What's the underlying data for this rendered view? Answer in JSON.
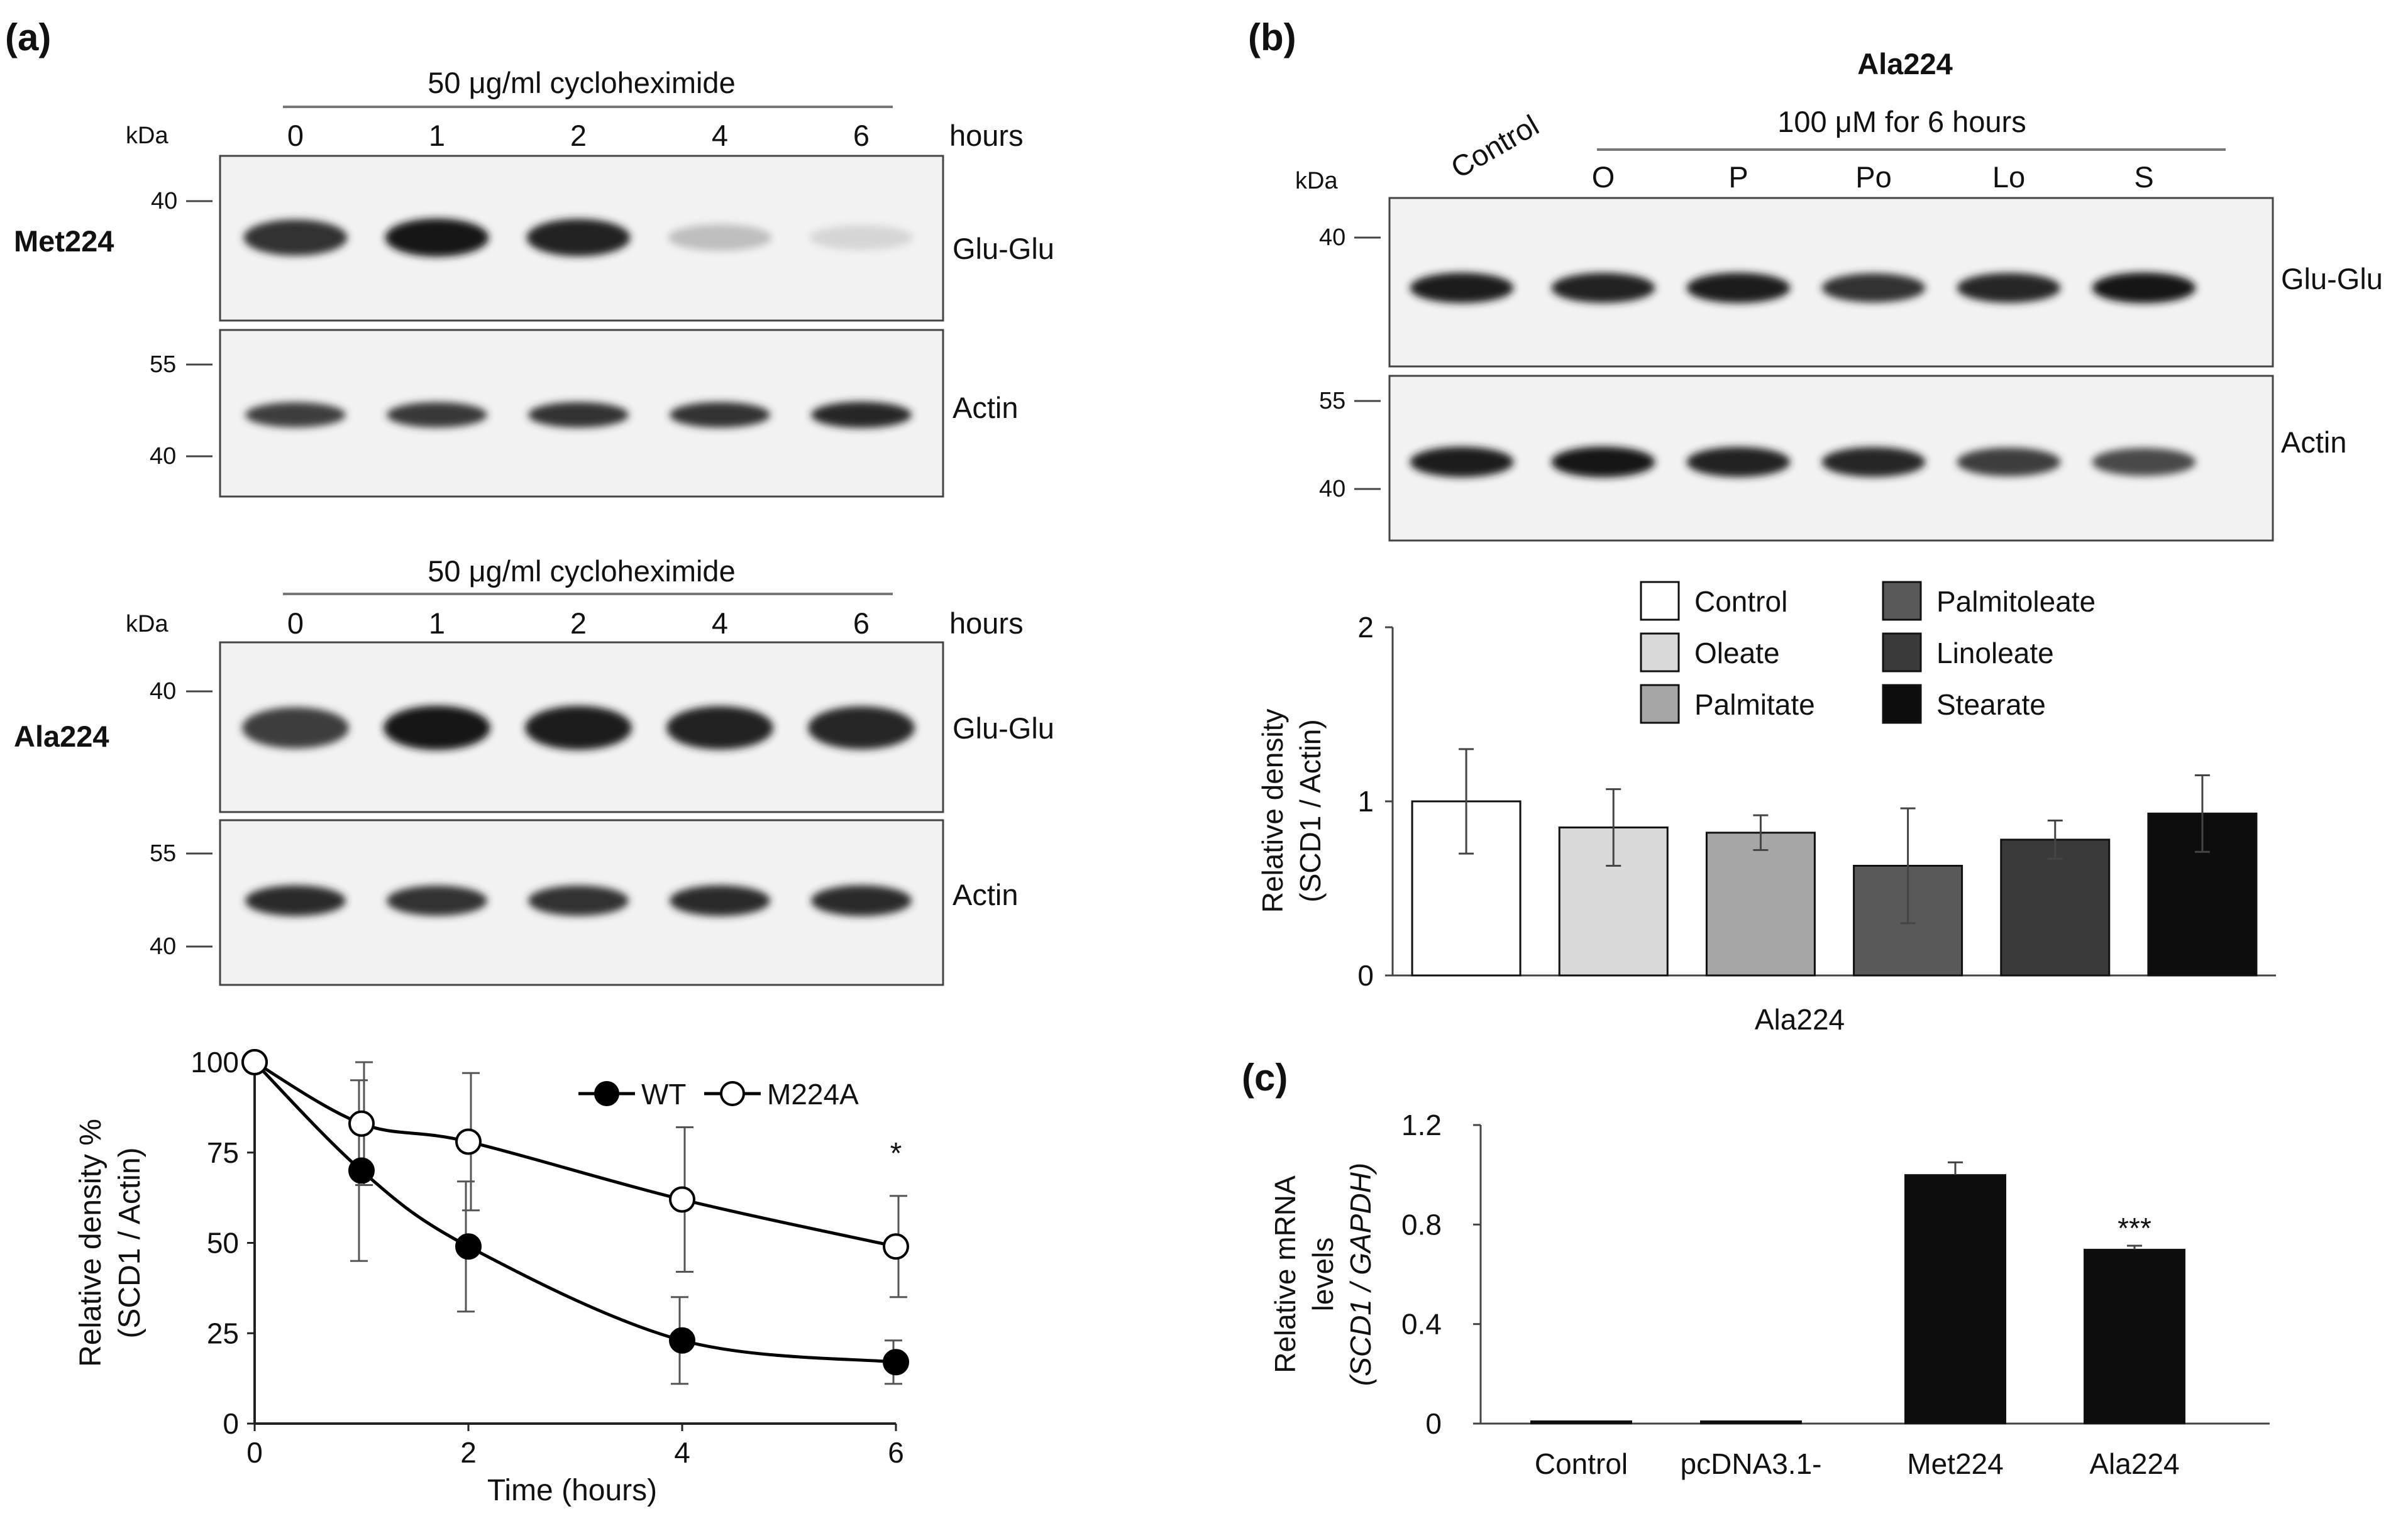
{
  "panel_a": {
    "label": "(a)",
    "kda": "kDa",
    "treatment": "50 μg/ml cycloheximide",
    "hours_label": "hours",
    "timepoints": [
      "0",
      "1",
      "2",
      "4",
      "6"
    ],
    "blot1": {
      "row_label": "Met224",
      "top_band_label": "Glu-Glu",
      "bottom_band_label": "Actin",
      "marker_top": [
        "40"
      ],
      "marker_bottom": [
        "55",
        "40"
      ],
      "band_intensity_glu": [
        0.82,
        0.95,
        0.9,
        0.2,
        0.1
      ],
      "band_intensity_actin": [
        0.78,
        0.8,
        0.82,
        0.82,
        0.88
      ]
    },
    "blot2": {
      "row_label": "Ala224",
      "top_band_label": "Glu-Glu",
      "bottom_band_label": "Actin",
      "marker_top": [
        "40"
      ],
      "marker_bottom": [
        "55",
        "40"
      ],
      "band_intensity_glu": [
        0.78,
        0.95,
        0.93,
        0.9,
        0.88
      ],
      "band_intensity_actin": [
        0.85,
        0.82,
        0.83,
        0.85,
        0.86
      ]
    }
  },
  "panel_b": {
    "label": "(b)",
    "title": "Ala224",
    "treatment": "100 μM for 6 hours",
    "kda": "kDa",
    "lanes": [
      "Control",
      "O",
      "P",
      "Po",
      "Lo",
      "S"
    ],
    "top_band_label": "Glu-Glu",
    "bottom_band_label": "Actin",
    "marker_top": [
      "40"
    ],
    "marker_bottom": [
      "55",
      "40"
    ],
    "band_intensity_glu": [
      0.92,
      0.9,
      0.92,
      0.82,
      0.88,
      0.95
    ],
    "band_intensity_actin": [
      0.92,
      0.95,
      0.9,
      0.88,
      0.78,
      0.72
    ]
  },
  "panel_c": {
    "label": "(c)"
  },
  "chart_data": [
    {
      "type": "line",
      "xlabel": "Time (hours)",
      "ylabel": "Relative density %",
      "ylabel2": "(SCD1 / Actin)",
      "x": [
        0,
        1,
        2,
        4,
        6
      ],
      "xticks": [
        "0",
        "2",
        "4",
        "6"
      ],
      "yticks": [
        "0",
        "25",
        "50",
        "75",
        "100"
      ],
      "xlim": [
        0,
        6
      ],
      "ylim": [
        0,
        100
      ],
      "series": [
        {
          "name": "WT",
          "values": [
            100,
            70,
            49,
            23,
            17
          ],
          "err": [
            0,
            25,
            18,
            12,
            6
          ],
          "marker": "filled",
          "color": "#000000"
        },
        {
          "name": "M224A",
          "values": [
            100,
            83,
            78,
            62,
            49
          ],
          "err": [
            0,
            17,
            19,
            20,
            14
          ],
          "marker": "open",
          "color": "#000000"
        }
      ],
      "annotations": [
        {
          "x": 6,
          "text": "*"
        }
      ],
      "legend_position": "top-right"
    },
    {
      "type": "bar",
      "xlabel": "Ala224",
      "ylabel": "Relative density",
      "ylabel2": "(SCD1 / Actin)",
      "categories": [
        "Control",
        "Oleate",
        "Palmitate",
        "Palmitoleate",
        "Linoleate",
        "Stearate"
      ],
      "values": [
        1.0,
        0.85,
        0.82,
        0.63,
        0.78,
        0.93
      ],
      "err": [
        0.3,
        0.22,
        0.1,
        0.33,
        0.11,
        0.22
      ],
      "colors": [
        "#ffffff",
        "#d9d9d9",
        "#a6a6a6",
        "#595959",
        "#3a3a3a",
        "#0d0d0d"
      ],
      "yticks": [
        "0",
        "1",
        "2"
      ],
      "ylim": [
        0,
        2
      ],
      "legend_position": "top"
    },
    {
      "type": "bar",
      "xlabel": "",
      "ylabel": "Relative mRNA",
      "ylabel2": "levels",
      "ylabel3": "(SCD1 / GAPDH)",
      "categories": [
        "Control",
        "pcDNA3.1-",
        "Met224",
        "Ala224"
      ],
      "values": [
        0.0,
        0.0,
        1.0,
        0.7
      ],
      "err": [
        0,
        0,
        0.05,
        0.015
      ],
      "yticks": [
        "0",
        "0.4",
        "0.8",
        "1.2"
      ],
      "ylim": [
        0,
        1.2
      ],
      "annotations": [
        {
          "category": "Ala224",
          "text": "***"
        }
      ]
    }
  ]
}
